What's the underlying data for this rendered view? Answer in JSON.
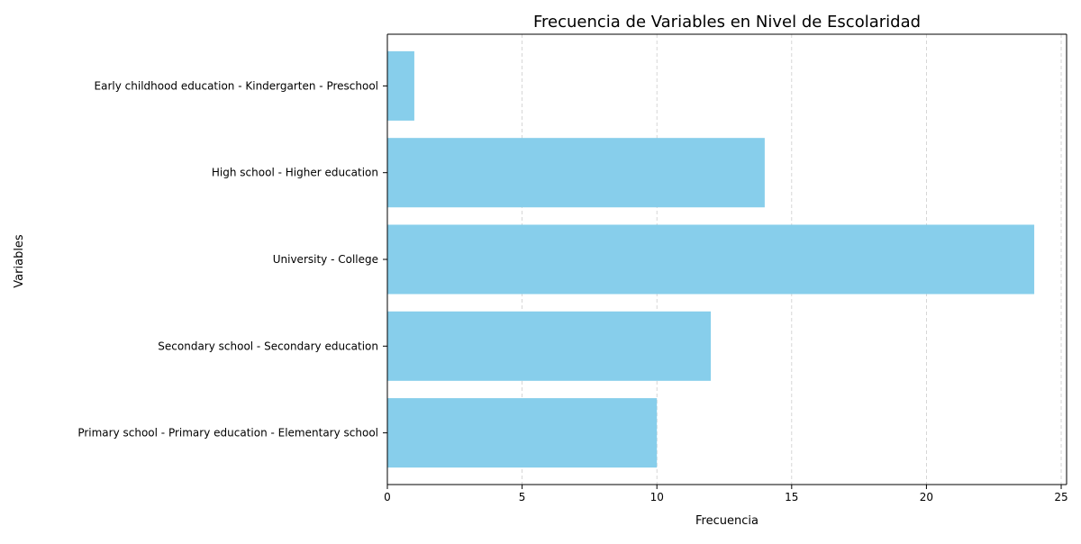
{
  "chart_data": {
    "type": "bar",
    "orientation": "horizontal",
    "title": "Frecuencia de Variables en Nivel de Escolaridad",
    "xlabel": "Frecuencia",
    "ylabel": "Variables",
    "categories": [
      "Primary school - Primary education - Elementary school",
      "Secondary school - Secondary education",
      "University - College",
      "High school - Higher education",
      "Early childhood education - Kindergarten - Preschool"
    ],
    "values": [
      10,
      12,
      24,
      14,
      1
    ],
    "xlim": [
      0,
      25.2
    ],
    "xticks": [
      0,
      5,
      10,
      15,
      20,
      25
    ],
    "grid": {
      "x": true,
      "y": false,
      "style": "dashed"
    },
    "bar_color": "#87CEEB",
    "grid_color": "#cccccc",
    "axis_color": "#000000"
  }
}
